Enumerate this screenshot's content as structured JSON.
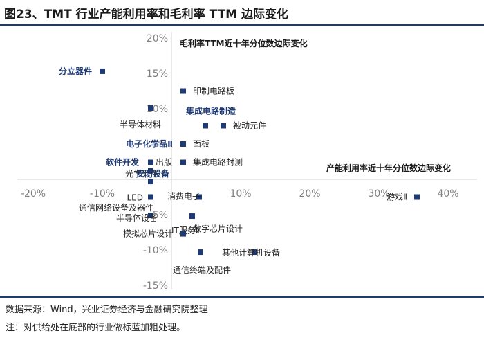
{
  "figure": {
    "title": "图23、TMT 行业产能利用率和毛利率 TTM 边际变化",
    "source": "数据来源：Wind，兴业证券经济与金融研究院整理",
    "note": "注：对供给处在底部的行业做标蓝加粗处理。"
  },
  "colors": {
    "marker": "#1f3a73",
    "highlight_label": "#1f3a73",
    "axis_line": "#d0d0d0",
    "tick_text": "#7f7f7f"
  },
  "chart_data": {
    "type": "scatter",
    "xlabel": "产能利用率近十年分位数边际变化",
    "ylabel": "毛利率TTM近十年分位数边际变化",
    "xlim": [
      -0.2,
      0.4
    ],
    "ylim": [
      -0.15,
      0.2
    ],
    "x_ticks": [
      "-20%",
      "-10%",
      "0%",
      "10%",
      "20%",
      "30%",
      "40%"
    ],
    "y_ticks": [
      "20%",
      "15%",
      "10%",
      "5%",
      "0%",
      "-5%",
      "-10%",
      "-15%"
    ],
    "grid": false,
    "points": [
      {
        "label": "分立器件",
        "x": -0.1,
        "y": 0.153,
        "highlight": true
      },
      {
        "label": "印制电路板",
        "x": 0.017,
        "y": 0.125,
        "highlight": false
      },
      {
        "label": "半导体材料",
        "x": -0.03,
        "y": 0.101,
        "highlight": false
      },
      {
        "label": "集成电路制造",
        "x": 0.049,
        "y": 0.076,
        "highlight": true
      },
      {
        "label": "被动元件",
        "x": 0.075,
        "y": 0.076,
        "highlight": false
      },
      {
        "label": "电子化学品Ⅱ",
        "x": 0.017,
        "y": 0.05,
        "highlight": true
      },
      {
        "label": "面板",
        "x": 0.017,
        "y": 0.05,
        "highlight": false
      },
      {
        "label": "软件开发",
        "x": -0.03,
        "y": 0.024,
        "highlight": true
      },
      {
        "label": "出版",
        "x": -0.03,
        "y": 0.024,
        "highlight": false
      },
      {
        "label": "集成电路封测",
        "x": 0.017,
        "y": 0.024,
        "highlight": false
      },
      {
        "label": "光学元件",
        "x": -0.03,
        "y": 0.012,
        "highlight": false
      },
      {
        "label": "安防设备",
        "x": -0.03,
        "y": -0.003,
        "highlight": true
      },
      {
        "label": "LED",
        "x": -0.03,
        "y": -0.025,
        "highlight": false
      },
      {
        "label": "消费电子",
        "x": 0.04,
        "y": -0.025,
        "highlight": false
      },
      {
        "label": "游戏Ⅱ",
        "x": 0.355,
        "y": -0.025,
        "highlight": false
      },
      {
        "label": "通信网络设备及器件",
        "x": -0.03,
        "y": -0.051,
        "highlight": false
      },
      {
        "label": "半导体设备",
        "x": -0.03,
        "y": -0.051,
        "highlight": false
      },
      {
        "label": "IT服务Ⅱ",
        "x": 0.03,
        "y": -0.052,
        "highlight": false
      },
      {
        "label": "模拟芯片设计",
        "x": 0.017,
        "y": -0.077,
        "highlight": false
      },
      {
        "label": "数字芯片设计",
        "x": 0.017,
        "y": -0.077,
        "highlight": false
      },
      {
        "label": "其他计算机设备",
        "x": 0.12,
        "y": -0.103,
        "highlight": false
      },
      {
        "label": "通信终端及配件",
        "x": 0.042,
        "y": -0.103,
        "highlight": false
      }
    ]
  }
}
